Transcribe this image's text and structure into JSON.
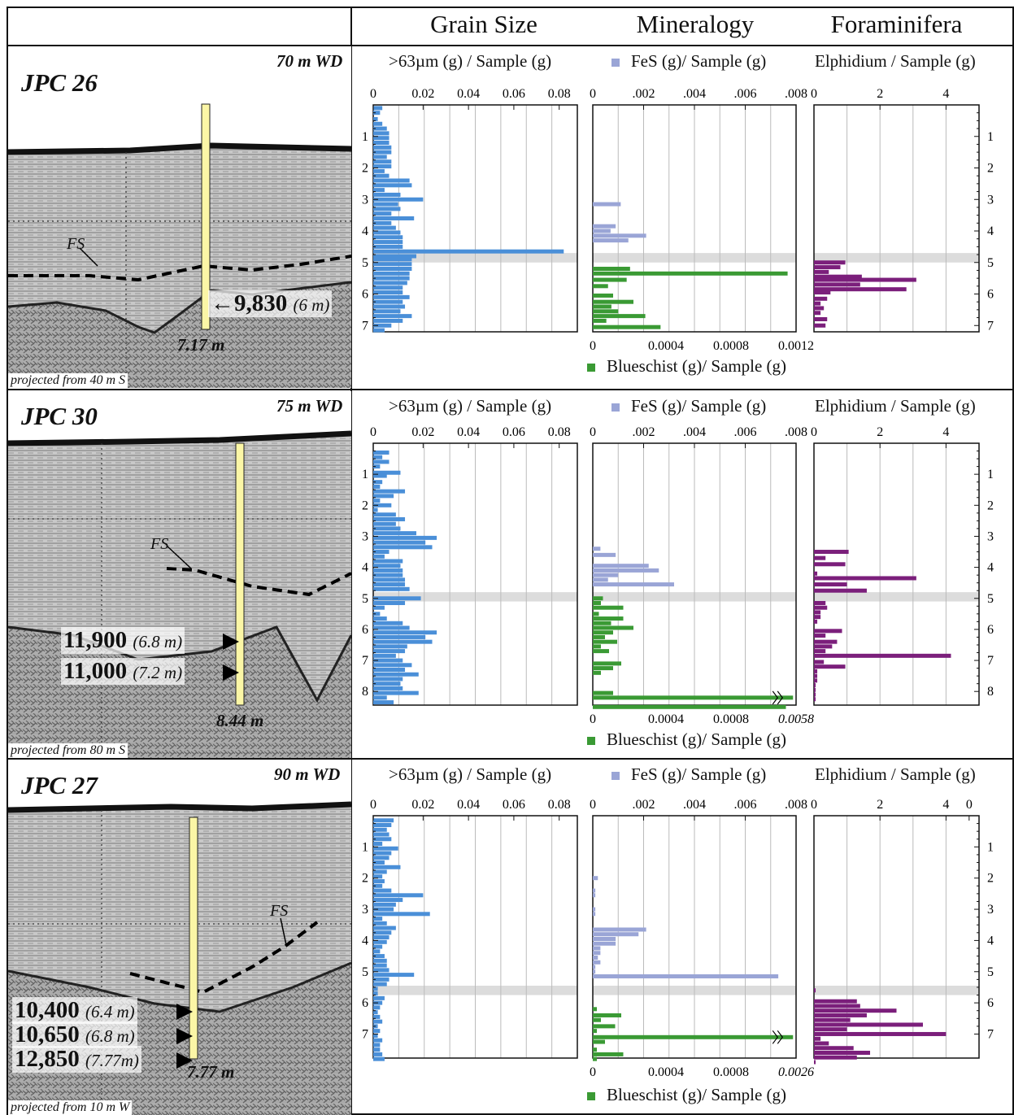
{
  "headers": {
    "grain": "Grain Size",
    "mineral": "Mineralogy",
    "foram": "Foraminifera"
  },
  "colors": {
    "grain": "#4a8fd8",
    "fes": "#9aa5d6",
    "blueschist": "#3a9a34",
    "elphidium": "#7b1f7b",
    "highlight": "#dcdcdc",
    "core_fill": "#fbf6a6"
  },
  "labels": {
    "grain_axis": ">63µm (g) / Sample (g)",
    "fes_axis": "FeS (g)/ Sample (g)",
    "foram_axis": "Elphidium / Sample (g)",
    "blue_axis": "Blueschist (g)/ Sample (g)",
    "fs": "FS"
  },
  "rows": [
    {
      "core": "JPC 26",
      "wd": "70 m WD",
      "proj": "projected from 40 m S",
      "depth_label": "7.17 m",
      "ages": [
        {
          "arrow": "←",
          "value": "9,830",
          "depth": "(6 m)"
        }
      ],
      "grain_ticks": [
        "0",
        "0.02",
        "0.04",
        "0.06",
        "0.08"
      ],
      "fes_ticks": [
        "0",
        ".002",
        ".004",
        ".006",
        ".008"
      ],
      "foram_ticks": [
        "0",
        "2",
        "4"
      ],
      "blue_ticks": [
        "0",
        "0.0004",
        "0.0008",
        "0.0012"
      ],
      "depth_ticks": [
        "1",
        "2",
        "3",
        "4",
        "5",
        "6",
        "7"
      ]
    },
    {
      "core": "JPC 30",
      "wd": "75 m WD",
      "proj": "projected from 80 m S",
      "depth_label": "8.44 m",
      "ages": [
        {
          "arrow": "",
          "value": "11,900",
          "depth": "(6.8 m)"
        },
        {
          "arrow": "",
          "value": "11,000",
          "depth": "(7.2 m)"
        }
      ],
      "grain_ticks": [
        "0",
        "0.02",
        "0.04",
        "0.06",
        "0.08"
      ],
      "fes_ticks": [
        "0",
        ".002",
        ".004",
        ".006",
        ".008"
      ],
      "foram_ticks": [
        "0",
        "2",
        "4"
      ],
      "blue_ticks": [
        "0",
        "0.0004",
        "0.0008",
        "0.0058"
      ],
      "depth_ticks": [
        "1",
        "2",
        "3",
        "4",
        "5",
        "6",
        "7",
        "8"
      ]
    },
    {
      "core": "JPC 27",
      "wd": "90 m WD",
      "proj": "projected from 10 m W",
      "depth_label": "7.77 m",
      "ages": [
        {
          "arrow": "",
          "value": "10,400",
          "depth": "(6.4 m)"
        },
        {
          "arrow": "",
          "value": "10,650",
          "depth": "(6.8 m)"
        },
        {
          "arrow": "",
          "value": "12,850",
          "depth": "(7.77m)"
        }
      ],
      "grain_ticks": [
        "0",
        "0.02",
        "0.04",
        "0.06",
        "0.08"
      ],
      "fes_ticks": [
        "0",
        ".002",
        ".004",
        ".006",
        ".008"
      ],
      "foram_ticks": [
        "0",
        "2",
        "4",
        "0"
      ],
      "blue_ticks": [
        "0",
        "0.0004",
        "0.0008",
        "0.0026"
      ],
      "depth_ticks": [
        "1",
        "2",
        "3",
        "4",
        "5",
        "6",
        "7"
      ]
    }
  ],
  "chart_data": [
    {
      "type": "bar",
      "core": "JPC 26",
      "depth_range_m": [
        0,
        7.2
      ],
      "highlight_m": [
        4.7,
        5.0
      ],
      "grain": {
        "xlim": [
          0,
          0.09
        ],
        "depth": [
          0.1,
          0.25,
          0.45,
          0.6,
          0.75,
          0.9,
          1.05,
          1.2,
          1.35,
          1.5,
          1.65,
          1.8,
          1.95,
          2.1,
          2.25,
          2.4,
          2.55,
          2.7,
          2.85,
          3.0,
          3.15,
          3.3,
          3.45,
          3.6,
          3.75,
          3.9,
          4.05,
          4.2,
          4.35,
          4.5,
          4.65,
          4.8,
          4.9,
          5.05,
          5.2,
          5.35,
          5.5,
          5.65,
          5.8,
          5.95,
          6.1,
          6.25,
          6.4,
          6.55,
          6.7,
          6.85,
          7.0,
          7.15
        ],
        "values": [
          0.004,
          0.003,
          0.002,
          0.004,
          0.006,
          0.007,
          0.007,
          0.007,
          0.008,
          0.008,
          0.006,
          0.008,
          0.008,
          0.005,
          0.007,
          0.016,
          0.017,
          0.005,
          0.012,
          0.022,
          0.011,
          0.012,
          0.008,
          0.018,
          0.008,
          0.01,
          0.012,
          0.013,
          0.013,
          0.013,
          0.084,
          0.019,
          0.017,
          0.017,
          0.017,
          0.016,
          0.016,
          0.015,
          0.013,
          0.013,
          0.016,
          0.013,
          0.014,
          0.012,
          0.017,
          0.013,
          0.008,
          0.005
        ]
      },
      "fes": {
        "xlim": [
          0,
          0.008
        ],
        "depth": [
          3.15,
          3.85,
          4.0,
          4.15,
          4.3
        ],
        "values": [
          0.0011,
          0.0009,
          0.0007,
          0.0021,
          0.0014
        ]
      },
      "blueschist": {
        "xlim": [
          0,
          0.0012
        ],
        "depth": [
          5.2,
          5.35,
          5.55,
          5.75,
          6.05,
          6.25,
          6.4,
          6.55,
          6.7,
          6.85,
          7.05
        ],
        "values": [
          0.00022,
          0.00115,
          0.0002,
          9e-05,
          0.00012,
          0.00024,
          0.00011,
          0.00015,
          0.00031,
          8e-05,
          0.0004
        ]
      },
      "elphidium": {
        "xlim": [
          0,
          5
        ],
        "depth": [
          5.0,
          5.15,
          5.3,
          5.45,
          5.55,
          5.7,
          5.85,
          5.95,
          6.15,
          6.3,
          6.45,
          6.6,
          6.8,
          7.0
        ],
        "values": [
          0.95,
          0.8,
          0.45,
          1.45,
          3.1,
          1.4,
          2.8,
          0.5,
          0.4,
          0.2,
          0.3,
          0.2,
          0.4,
          0.35
        ]
      }
    },
    {
      "type": "bar",
      "core": "JPC 30",
      "depth_range_m": [
        0,
        8.44
      ],
      "highlight_m": [
        4.8,
        5.1
      ],
      "grain": {
        "xlim": [
          0,
          0.09
        ],
        "depth": [
          0.3,
          0.45,
          0.6,
          0.75,
          0.95,
          1.05,
          1.25,
          1.4,
          1.55,
          1.7,
          1.85,
          2.0,
          2.15,
          2.3,
          2.45,
          2.6,
          2.75,
          2.9,
          3.05,
          3.2,
          3.35,
          3.5,
          3.65,
          3.8,
          3.95,
          4.1,
          4.25,
          4.4,
          4.55,
          4.7,
          5.0,
          5.15,
          5.3,
          5.5,
          5.65,
          5.8,
          5.95,
          6.1,
          6.25,
          6.4,
          6.55,
          6.7,
          6.85,
          7.0,
          7.15,
          7.3,
          7.45,
          7.6,
          7.75,
          7.9,
          8.05,
          8.2,
          8.35
        ],
        "values": [
          0.007,
          0.004,
          0.007,
          0.003,
          0.012,
          0.006,
          0.004,
          0.003,
          0.014,
          0.009,
          0.003,
          0.008,
          0.002,
          0.01,
          0.014,
          0.01,
          0.012,
          0.019,
          0.028,
          0.023,
          0.026,
          0.007,
          0.005,
          0.013,
          0.012,
          0.013,
          0.013,
          0.014,
          0.014,
          0.016,
          0.021,
          0.014,
          0.005,
          0.003,
          0.006,
          0.013,
          0.016,
          0.028,
          0.023,
          0.026,
          0.015,
          0.014,
          0.01,
          0.013,
          0.017,
          0.014,
          0.02,
          0.013,
          0.012,
          0.013,
          0.02,
          0.006,
          0.009
        ]
      },
      "fes": {
        "xlim": [
          0,
          0.008
        ],
        "depth": [
          3.4,
          3.6,
          3.95,
          4.1,
          4.25,
          4.4,
          4.55
        ],
        "values": [
          0.0003,
          0.0009,
          0.0022,
          0.0026,
          0.001,
          0.0006,
          0.0032
        ]
      },
      "blueschist": {
        "xlim": [
          0,
          0.001
        ],
        "depth": [
          5.0,
          5.15,
          5.3,
          5.5,
          5.65,
          5.8,
          5.95,
          6.1,
          6.25,
          6.4,
          6.55,
          6.7,
          7.1,
          7.25,
          7.4,
          8.05,
          8.2,
          8.5
        ],
        "values": [
          5e-05,
          4e-05,
          0.00015,
          3e-05,
          0.00015,
          9e-05,
          0.0002,
          0.0001,
          6e-05,
          0.00012,
          4e-05,
          8e-05,
          0.00014,
          0.0001,
          4e-05,
          0.0001,
          0.0058,
          0.00095
        ]
      },
      "elphidium": {
        "xlim": [
          0,
          5
        ],
        "depth": [
          3.5,
          3.7,
          3.9,
          4.2,
          4.35,
          4.55,
          4.75,
          5.15,
          5.3,
          5.45,
          5.6,
          5.75,
          6.05,
          6.2,
          6.4,
          6.55,
          6.7,
          6.85,
          7.05,
          7.2,
          7.35,
          7.5,
          7.65,
          7.8,
          7.95,
          8.1,
          8.25
        ],
        "values": [
          1.05,
          0.35,
          0.95,
          0.1,
          3.1,
          1.0,
          1.6,
          0.35,
          0.4,
          0.2,
          0.2,
          0.1,
          0.85,
          0.35,
          0.7,
          0.55,
          0.35,
          4.15,
          0.3,
          0.95,
          0.1,
          0.1,
          0.1,
          0.05,
          0.05,
          0.05,
          0.05
        ]
      }
    },
    {
      "type": "bar",
      "core": "JPC 27",
      "depth_range_m": [
        0,
        7.77
      ],
      "highlight_m": [
        5.45,
        5.75
      ],
      "grain": {
        "xlim": [
          0,
          0.09
        ],
        "depth": [
          0.15,
          0.3,
          0.45,
          0.6,
          0.75,
          0.9,
          1.05,
          1.2,
          1.35,
          1.5,
          1.65,
          1.8,
          1.95,
          2.1,
          2.25,
          2.4,
          2.55,
          2.7,
          2.85,
          3.0,
          3.15,
          3.3,
          3.45,
          3.6,
          3.75,
          3.9,
          4.05,
          4.2,
          4.35,
          4.5,
          4.65,
          4.8,
          4.95,
          5.1,
          5.25,
          5.4,
          5.55,
          5.7,
          5.85,
          6.0,
          6.15,
          6.3,
          6.45,
          6.6,
          6.75,
          6.9,
          7.05,
          7.2,
          7.35,
          7.5,
          7.65,
          7.8
        ],
        "values": [
          0.009,
          0.008,
          0.006,
          0.007,
          0.008,
          0.004,
          0.011,
          0.008,
          0.007,
          0.005,
          0.012,
          0.006,
          0.004,
          0.005,
          0.004,
          0.008,
          0.022,
          0.013,
          0.01,
          0.009,
          0.025,
          0.004,
          0.006,
          0.01,
          0.008,
          0.007,
          0.006,
          0.004,
          0.003,
          0.005,
          0.006,
          0.006,
          0.007,
          0.018,
          0.007,
          0.006,
          0.002,
          0.002,
          0.005,
          0.004,
          0.003,
          0.002,
          0.003,
          0.004,
          0.002,
          0.003,
          0.002,
          0.004,
          0.003,
          0.003,
          0.004,
          0.005
        ]
      },
      "fes": {
        "xlim": [
          0,
          0.008
        ],
        "depth": [
          2.0,
          2.4,
          2.55,
          3.0,
          3.15,
          3.65,
          3.8,
          3.95,
          4.1,
          4.25,
          4.4,
          4.55,
          4.7,
          4.85,
          5.0,
          5.15
        ],
        "values": [
          0.0002,
          0.0001,
          0.0001,
          0.0001,
          0.0001,
          0.0021,
          0.0018,
          0.0009,
          0.0009,
          0.0003,
          0.0003,
          0.0002,
          0.0003,
          0.0001,
          0.0001,
          0.0073
        ]
      },
      "blueschist": {
        "xlim": [
          0,
          0.001
        ],
        "depth": [
          6.2,
          6.4,
          6.55,
          6.75,
          6.9,
          7.1,
          7.25,
          7.5,
          7.65,
          7.8
        ],
        "values": [
          2e-05,
          0.00014,
          4e-05,
          0.00011,
          2e-05,
          0.0026,
          6e-05,
          2e-05,
          0.00015,
          2e-05
        ]
      },
      "elphidium": {
        "xlim": [
          0,
          5
        ],
        "depth": [
          5.6,
          5.95,
          6.1,
          6.25,
          6.4,
          6.55,
          6.7,
          6.85,
          7.0,
          7.15,
          7.3,
          7.45,
          7.6,
          7.75,
          7.9
        ],
        "values": [
          0.05,
          1.3,
          1.4,
          2.5,
          1.6,
          1.1,
          3.3,
          1.0,
          4.0,
          0.2,
          0.45,
          1.2,
          1.7,
          1.3,
          0.05
        ]
      }
    }
  ]
}
